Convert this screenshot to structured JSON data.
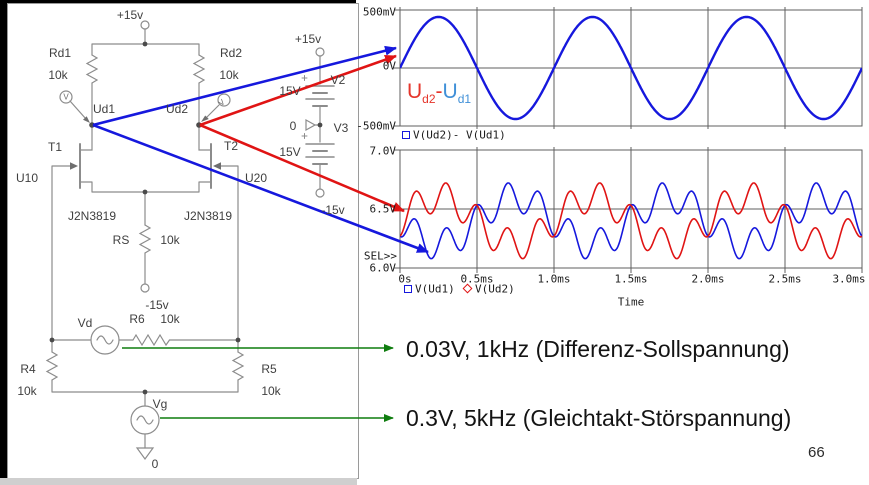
{
  "page": {
    "number": "66"
  },
  "circuit": {
    "labels": {
      "vcc": "+15v",
      "rd1": "Rd1",
      "rd1_value": "10k",
      "rd2": "Rd2",
      "rd2_value": "10k",
      "probe1": "V",
      "probe2": "V",
      "ud1": "Ud1",
      "ud2": "Ud2",
      "t1": "T1",
      "t2": "T2",
      "u10": "U10",
      "u20": "U20",
      "t1_model": "J2N3819",
      "t2_model": "J2N3819",
      "rs": "RS",
      "rs_value": "10k",
      "rs_supply": "-15v",
      "vd": "Vd",
      "r6": "R6",
      "r6_value": "10k",
      "r4": "R4",
      "r4_value": "10k",
      "r5": "R5",
      "r5_value": "10k",
      "vg": "Vg",
      "gnd": "0",
      "v2_supply": "+15v",
      "v2_value": "15V",
      "v2": "V2",
      "ref0": "0",
      "v3": "V3",
      "v3_value": "15V",
      "v3_supply": "-15v"
    }
  },
  "annotations": {
    "diff": "0.03V, 1kHz (Differenz-Sollspannung)",
    "cm": "0.3V, 5kHz (Gleichtakt-Störspannung)"
  },
  "plots": {
    "top": {
      "y_ticks": [
        "500mV",
        "0V",
        "-500mV"
      ],
      "legend": "V(Ud2)- V(Ud1)",
      "inline_label": {
        "u1": "U",
        "s1": "d2",
        "minus": "-",
        "u2": "U",
        "s2": "d1"
      }
    },
    "bottom": {
      "y_ticks": [
        "7.0V",
        "6.5V",
        "6.0V"
      ],
      "sel": "SEL>>",
      "x_ticks": [
        "0s",
        "0.5ms",
        "1.0ms",
        "1.5ms",
        "2.0ms",
        "2.5ms",
        "3.0ms"
      ],
      "xlabel": "Time",
      "legend": [
        {
          "label": "V(Ud1)"
        },
        {
          "label": "V(Ud2)"
        }
      ]
    }
  },
  "colors": {
    "trace_blue": "#1618dd",
    "trace_red": "#e01414",
    "arrow_green": "#0f7d0f",
    "label_red": "#e5352b",
    "label_light_blue": "#4090d8",
    "schematic_gray": "#8c8c8c"
  },
  "chart_data": [
    {
      "type": "line",
      "title": "Differential output voltage",
      "legend": [
        "V(Ud2)- V(Ud1)"
      ],
      "xlabel": "Time",
      "x_range_ms": [
        0,
        3
      ],
      "y_range_V": [
        -0.5,
        0.5
      ],
      "y_ticks": [
        "500mV",
        "0V",
        "-500mV"
      ],
      "x_ticks": [
        "0s",
        "0.5ms",
        "1.0ms",
        "1.5ms",
        "2.0ms",
        "2.5ms",
        "3.0ms"
      ],
      "grid": true,
      "series": [
        {
          "name": "V(Ud2)- V(Ud1)",
          "color": "#1618dd",
          "offset_V": 0,
          "components": [
            {
              "amplitude_V": 0.44,
              "frequency_Hz": 1000,
              "phase_deg": 0
            }
          ]
        }
      ]
    },
    {
      "type": "line",
      "title": "Drain voltages with common-mode disturbance",
      "legend": [
        "V(Ud1)",
        "V(Ud2)"
      ],
      "xlabel": "Time",
      "x_range_ms": [
        0,
        3
      ],
      "y_range_V": [
        6.0,
        7.0
      ],
      "y_ticks": [
        "7.0V",
        "6.5V",
        "6.0V"
      ],
      "x_ticks": [
        "0s",
        "0.5ms",
        "1.0ms",
        "1.5ms",
        "2.0ms",
        "2.5ms",
        "3.0ms"
      ],
      "grid": true,
      "series": [
        {
          "name": "V(Ud1)",
          "color": "#1618dd",
          "offset_V": 6.4,
          "components": [
            {
              "amplitude_V": 0.2,
              "frequency_Hz": 1000,
              "phase_deg": 180
            },
            {
              "amplitude_V": 0.13,
              "frequency_Hz": 5000,
              "phase_deg": -90
            }
          ]
        },
        {
          "name": "V(Ud2)",
          "color": "#e01414",
          "offset_V": 6.4,
          "components": [
            {
              "amplitude_V": 0.2,
              "frequency_Hz": 1000,
              "phase_deg": 0
            },
            {
              "amplitude_V": 0.13,
              "frequency_Hz": 5000,
              "phase_deg": -90
            }
          ]
        }
      ]
    }
  ]
}
